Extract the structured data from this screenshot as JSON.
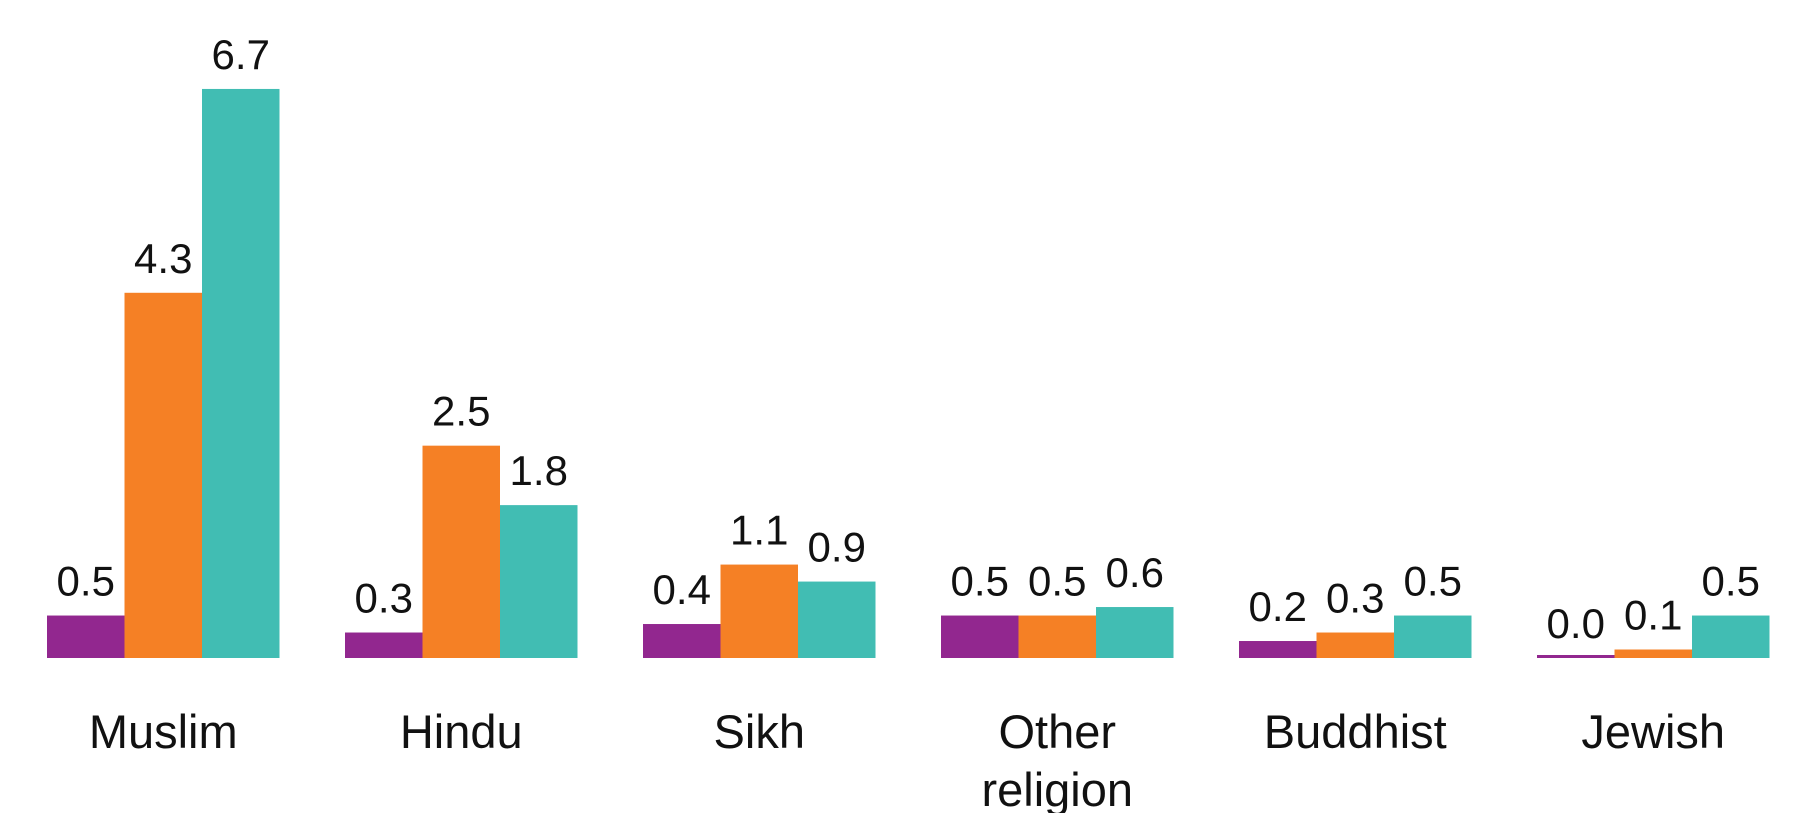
{
  "chart_data": {
    "type": "bar",
    "categories": [
      "Muslim",
      "Hindu",
      "Sikh",
      "Other religion",
      "Buddhist",
      "Jewish"
    ],
    "series": [
      {
        "color": "#92278f",
        "values": [
          0.5,
          0.3,
          0.4,
          0.5,
          0.2,
          0.0
        ],
        "value_labels": [
          "0.5",
          "0.3",
          "0.4",
          "0.5",
          "0.2",
          "0.0"
        ]
      },
      {
        "color": "#f58025",
        "values": [
          4.3,
          2.5,
          1.1,
          0.5,
          0.3,
          0.1
        ],
        "value_labels": [
          "4.3",
          "2.5",
          "1.1",
          "0.5",
          "0.3",
          "0.1"
        ]
      },
      {
        "color": "#41bdb3",
        "values": [
          6.7,
          1.8,
          0.9,
          0.6,
          0.5,
          0.5
        ],
        "value_labels": [
          "6.7",
          "1.8",
          "0.9",
          "0.6",
          "0.5",
          "0.5"
        ]
      }
    ],
    "ylim": [
      0,
      7.5
    ]
  }
}
